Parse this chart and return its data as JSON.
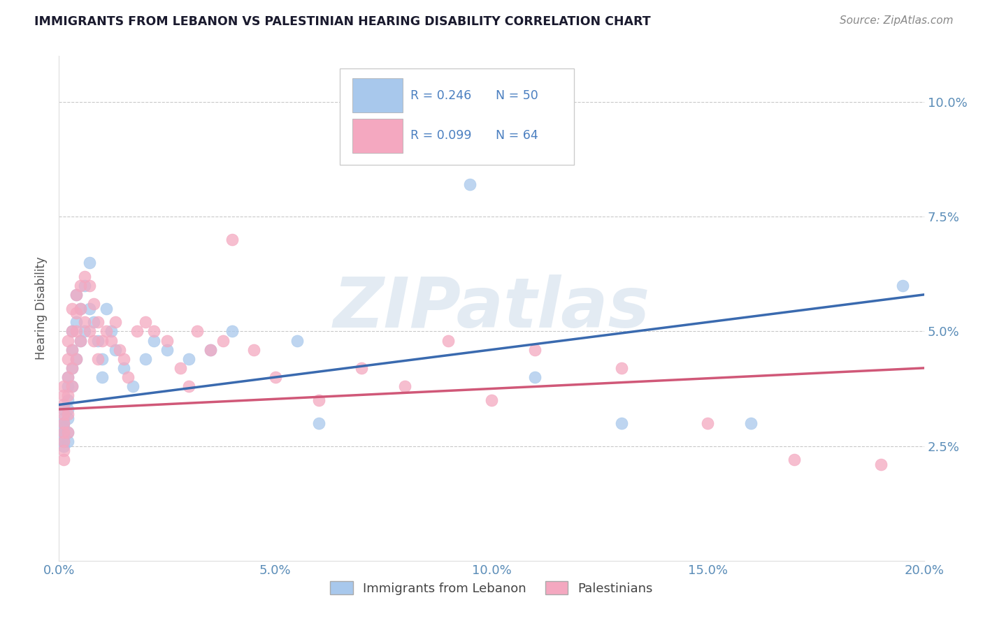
{
  "title": "IMMIGRANTS FROM LEBANON VS PALESTINIAN HEARING DISABILITY CORRELATION CHART",
  "source": "Source: ZipAtlas.com",
  "ylabel": "Hearing Disability",
  "xlim": [
    0.0,
    0.2
  ],
  "ylim": [
    0.0,
    0.11
  ],
  "x_ticks": [
    0.0,
    0.05,
    0.1,
    0.15,
    0.2
  ],
  "x_tick_labels": [
    "0.0%",
    "5.0%",
    "10.0%",
    "15.0%",
    "20.0%"
  ],
  "y_ticks": [
    0.025,
    0.05,
    0.075,
    0.1
  ],
  "y_tick_labels": [
    "2.5%",
    "5.0%",
    "7.5%",
    "10.0%"
  ],
  "lebanon_R": 0.246,
  "lebanon_N": 50,
  "palest_R": 0.099,
  "palest_N": 64,
  "blue_color": "#A8C8EC",
  "pink_color": "#F4A8C0",
  "blue_line_color": "#3A6AAF",
  "pink_line_color": "#D05878",
  "legend_label_1": "Immigrants from Lebanon",
  "legend_label_2": "Palestinians",
  "watermark": "ZIPatlas",
  "lebanon_x": [
    0.001,
    0.001,
    0.001,
    0.001,
    0.001,
    0.001,
    0.001,
    0.001,
    0.002,
    0.002,
    0.002,
    0.002,
    0.002,
    0.002,
    0.002,
    0.003,
    0.003,
    0.003,
    0.003,
    0.004,
    0.004,
    0.004,
    0.005,
    0.005,
    0.006,
    0.006,
    0.007,
    0.007,
    0.008,
    0.009,
    0.01,
    0.01,
    0.011,
    0.012,
    0.013,
    0.015,
    0.017,
    0.02,
    0.022,
    0.025,
    0.03,
    0.035,
    0.04,
    0.055,
    0.06,
    0.095,
    0.11,
    0.13,
    0.16,
    0.195
  ],
  "lebanon_y": [
    0.033,
    0.031,
    0.03,
    0.029,
    0.028,
    0.027,
    0.026,
    0.025,
    0.04,
    0.038,
    0.035,
    0.033,
    0.031,
    0.028,
    0.026,
    0.05,
    0.046,
    0.042,
    0.038,
    0.058,
    0.052,
    0.044,
    0.055,
    0.048,
    0.06,
    0.05,
    0.065,
    0.055,
    0.052,
    0.048,
    0.044,
    0.04,
    0.055,
    0.05,
    0.046,
    0.042,
    0.038,
    0.044,
    0.048,
    0.046,
    0.044,
    0.046,
    0.05,
    0.048,
    0.03,
    0.082,
    0.04,
    0.03,
    0.03,
    0.06
  ],
  "palest_x": [
    0.001,
    0.001,
    0.001,
    0.001,
    0.001,
    0.001,
    0.001,
    0.001,
    0.001,
    0.002,
    0.002,
    0.002,
    0.002,
    0.002,
    0.002,
    0.003,
    0.003,
    0.003,
    0.003,
    0.003,
    0.004,
    0.004,
    0.004,
    0.004,
    0.005,
    0.005,
    0.005,
    0.006,
    0.006,
    0.007,
    0.007,
    0.008,
    0.008,
    0.009,
    0.009,
    0.01,
    0.011,
    0.012,
    0.013,
    0.014,
    0.015,
    0.016,
    0.018,
    0.02,
    0.022,
    0.025,
    0.028,
    0.03,
    0.032,
    0.035,
    0.038,
    0.04,
    0.045,
    0.05,
    0.06,
    0.07,
    0.08,
    0.09,
    0.1,
    0.11,
    0.13,
    0.15,
    0.17,
    0.19
  ],
  "palest_y": [
    0.038,
    0.036,
    0.034,
    0.032,
    0.03,
    0.028,
    0.026,
    0.024,
    0.022,
    0.048,
    0.044,
    0.04,
    0.036,
    0.032,
    0.028,
    0.055,
    0.05,
    0.046,
    0.042,
    0.038,
    0.058,
    0.054,
    0.05,
    0.044,
    0.06,
    0.055,
    0.048,
    0.062,
    0.052,
    0.06,
    0.05,
    0.056,
    0.048,
    0.052,
    0.044,
    0.048,
    0.05,
    0.048,
    0.052,
    0.046,
    0.044,
    0.04,
    0.05,
    0.052,
    0.05,
    0.048,
    0.042,
    0.038,
    0.05,
    0.046,
    0.048,
    0.07,
    0.046,
    0.04,
    0.035,
    0.042,
    0.038,
    0.048,
    0.035,
    0.046,
    0.042,
    0.03,
    0.022,
    0.021
  ],
  "blue_line_y0": 0.034,
  "blue_line_y1": 0.058,
  "pink_line_y0": 0.033,
  "pink_line_y1": 0.042
}
